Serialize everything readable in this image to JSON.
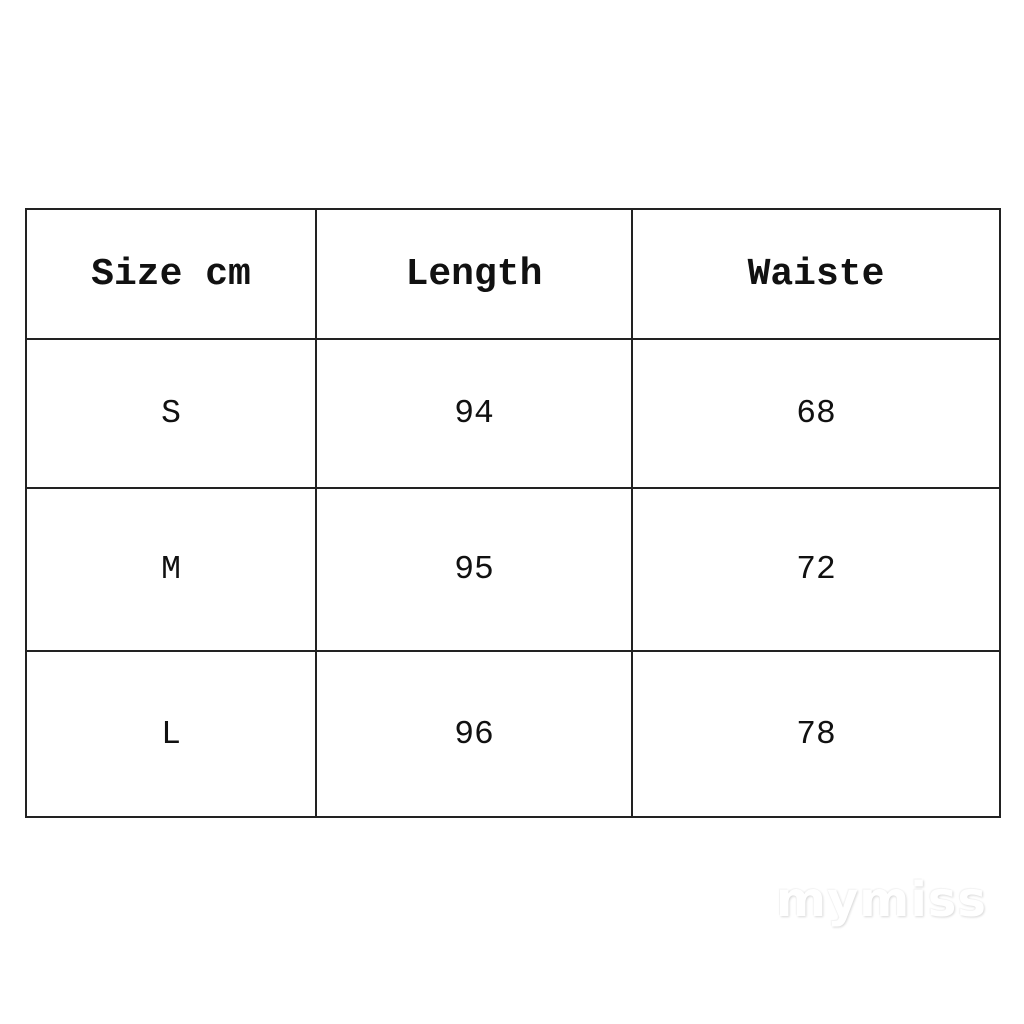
{
  "table": {
    "headers": [
      "Size cm",
      "Length",
      "Waiste"
    ],
    "rows": [
      [
        "S",
        "94",
        "68"
      ],
      [
        "M",
        "95",
        "72"
      ],
      [
        "L",
        "96",
        "78"
      ]
    ]
  },
  "watermark": "mymiss"
}
